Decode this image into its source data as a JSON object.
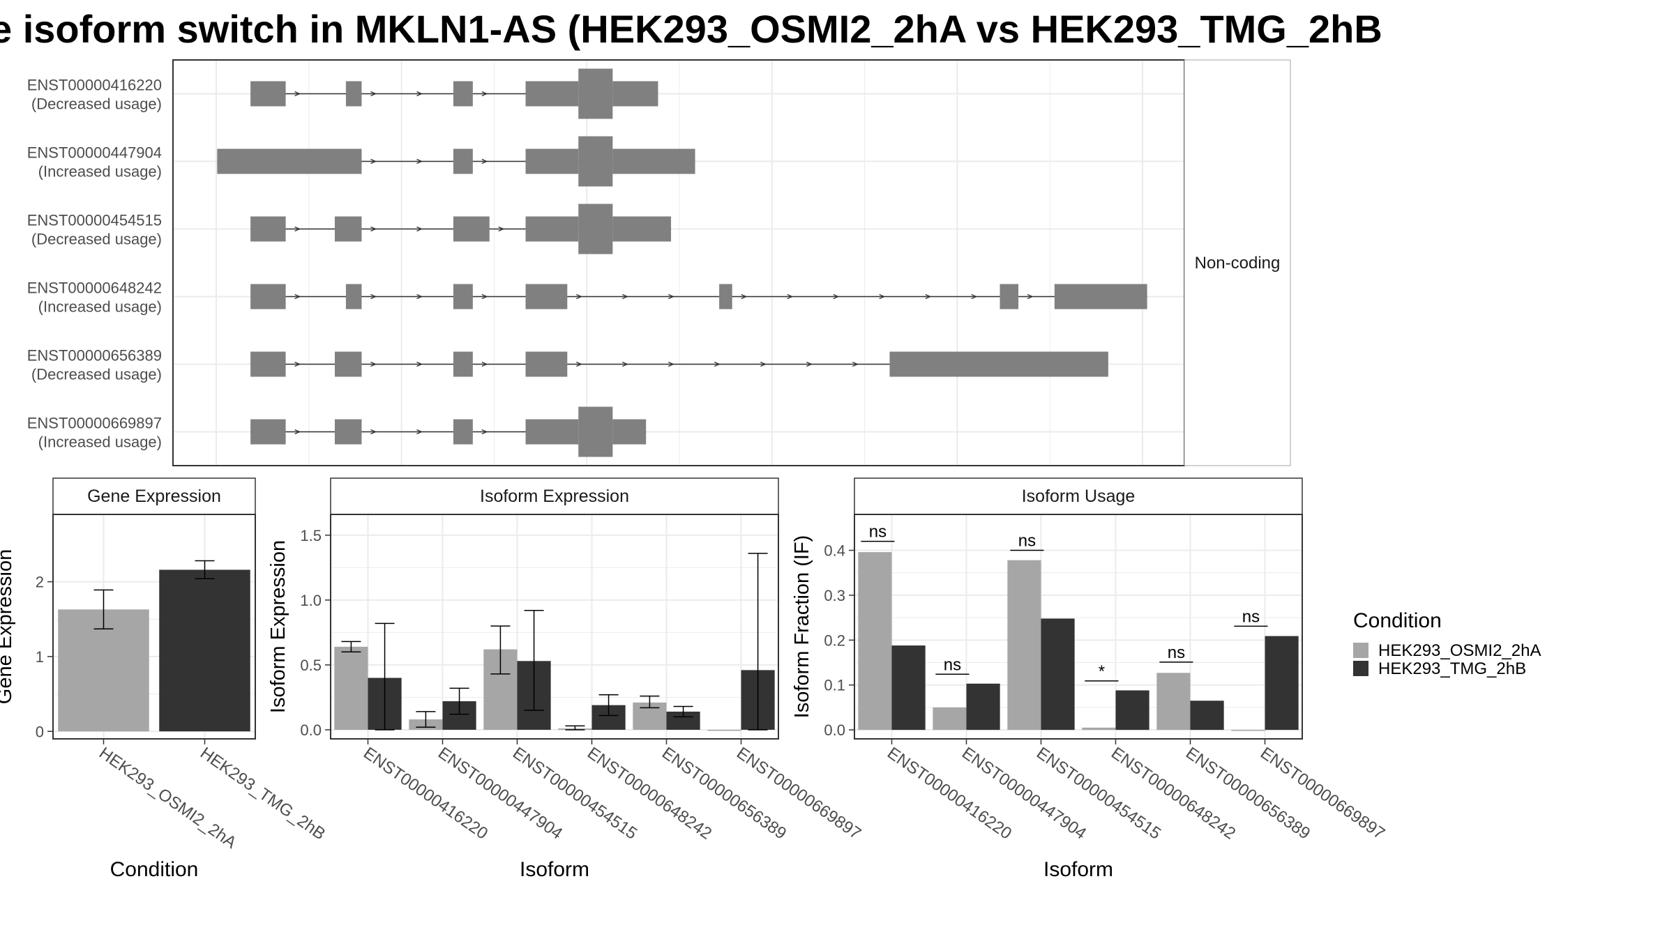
{
  "title": "e isoform switch in MKLN1-AS (HEK293_OSMI2_2hA vs HEK293_TMG_2hB",
  "colors": {
    "condition_a": "#a6a6a6",
    "condition_b": "#333333",
    "exon": "#808080",
    "panel_border": "#333333",
    "grid": "#ebebeb"
  },
  "structure_panel": {
    "strip_label": "Non-coding",
    "genome_axis_range": [
      0,
      1000
    ],
    "transcripts": [
      {
        "id": "ENST00000416220",
        "usage": "(Decreased usage)",
        "exons": [
          [
            37,
            75,
            "n"
          ],
          [
            140,
            157,
            "n"
          ],
          [
            256,
            277,
            "n"
          ],
          [
            334,
            391,
            "n"
          ],
          [
            391,
            428,
            "t"
          ],
          [
            428,
            477,
            "n"
          ]
        ]
      },
      {
        "id": "ENST00000447904",
        "usage": "(Increased usage)",
        "exons": [
          [
            1,
            157,
            "n"
          ],
          [
            256,
            277,
            "n"
          ],
          [
            334,
            391,
            "n"
          ],
          [
            391,
            428,
            "t"
          ],
          [
            428,
            517,
            "n"
          ]
        ]
      },
      {
        "id": "ENST00000454515",
        "usage": "(Decreased usage)",
        "exons": [
          [
            37,
            75,
            "n"
          ],
          [
            128,
            157,
            "n"
          ],
          [
            256,
            295,
            "n"
          ],
          [
            334,
            391,
            "n"
          ],
          [
            391,
            428,
            "t"
          ],
          [
            428,
            491,
            "n"
          ]
        ]
      },
      {
        "id": "ENST00000648242",
        "usage": "(Increased usage)",
        "exons": [
          [
            37,
            75,
            "n"
          ],
          [
            140,
            157,
            "n"
          ],
          [
            256,
            277,
            "n"
          ],
          [
            334,
            379,
            "n"
          ],
          [
            543,
            557,
            "n"
          ],
          [
            846,
            866,
            "n"
          ],
          [
            905,
            1005,
            "n"
          ]
        ]
      },
      {
        "id": "ENST00000656389",
        "usage": "(Decreased usage)",
        "exons": [
          [
            37,
            75,
            "n"
          ],
          [
            128,
            157,
            "n"
          ],
          [
            256,
            277,
            "n"
          ],
          [
            334,
            379,
            "n"
          ],
          [
            727,
            963,
            "n"
          ]
        ]
      },
      {
        "id": "ENST00000669897",
        "usage": "(Increased usage)",
        "exons": [
          [
            37,
            75,
            "n"
          ],
          [
            128,
            157,
            "n"
          ],
          [
            256,
            277,
            "n"
          ],
          [
            334,
            391,
            "n"
          ],
          [
            391,
            428,
            "t"
          ],
          [
            428,
            464,
            "n"
          ]
        ]
      }
    ]
  },
  "chart_data": [
    {
      "type": "bar",
      "title": "Gene Expression",
      "xlabel": "Condition",
      "ylabel": "Gene Expression",
      "ylim": [
        -0.1,
        2.9
      ],
      "yticks": [
        0,
        1,
        2
      ],
      "categories": [
        "HEK293_OSMI2_2hA",
        "HEK293_TMG_2hB"
      ],
      "series": [
        {
          "values": [
            1.63,
            2.16
          ],
          "error_low": [
            1.37,
            2.04
          ],
          "error_high": [
            1.89,
            2.28
          ]
        }
      ]
    },
    {
      "type": "bar",
      "title": "Isoform Expression",
      "xlabel": "Isoform",
      "ylabel": "Isoform Expression",
      "ylim": [
        -0.07,
        1.66
      ],
      "yticks": [
        0.0,
        0.5,
        1.0,
        1.5
      ],
      "categories": [
        "ENST00000416220",
        "ENST00000447904",
        "ENST00000454515",
        "ENST00000648242",
        "ENST00000656389",
        "ENST00000669897"
      ],
      "series": [
        {
          "name": "HEK293_OSMI2_2hA",
          "values": [
            0.64,
            0.08,
            0.62,
            0.01,
            0.21,
            0.0
          ],
          "error_low": [
            0.6,
            0.02,
            0.43,
            0.0,
            0.17,
            0.0
          ],
          "error_high": [
            0.68,
            0.14,
            0.8,
            0.03,
            0.26,
            0.0
          ]
        },
        {
          "name": "HEK293_TMG_2hB",
          "values": [
            0.4,
            0.22,
            0.53,
            0.19,
            0.14,
            0.46
          ],
          "error_low": [
            0.0,
            0.12,
            0.15,
            0.11,
            0.1,
            0.0
          ],
          "error_high": [
            0.82,
            0.32,
            0.92,
            0.27,
            0.18,
            1.36
          ]
        }
      ]
    },
    {
      "type": "bar",
      "title": "Isoform Usage",
      "xlabel": "Isoform",
      "ylabel": "Isoform Fraction (IF)",
      "ylim": [
        -0.02,
        0.48
      ],
      "yticks": [
        0.0,
        0.1,
        0.2,
        0.3,
        0.4
      ],
      "categories": [
        "ENST00000416220",
        "ENST00000447904",
        "ENST00000454515",
        "ENST00000648242",
        "ENST00000656389",
        "ENST00000669897"
      ],
      "series": [
        {
          "name": "HEK293_OSMI2_2hA",
          "values": [
            0.396,
            0.05,
            0.378,
            0.005,
            0.127,
            0.0
          ]
        },
        {
          "name": "HEK293_TMG_2hB",
          "values": [
            0.188,
            0.103,
            0.248,
            0.088,
            0.065,
            0.209
          ]
        }
      ],
      "annotations": [
        {
          "label": "ns",
          "y": 0.42
        },
        {
          "label": "ns",
          "y": 0.124
        },
        {
          "label": "ns",
          "y": 0.4
        },
        {
          "label": "*",
          "y": 0.109
        },
        {
          "label": "ns",
          "y": 0.151
        },
        {
          "label": "ns",
          "y": 0.231
        }
      ]
    }
  ],
  "legend": {
    "title": "Condition",
    "items": [
      "HEK293_OSMI2_2hA",
      "HEK293_TMG_2hB"
    ]
  }
}
